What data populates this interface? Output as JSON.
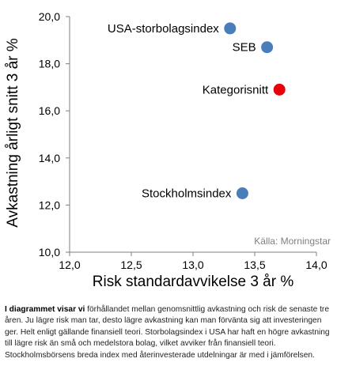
{
  "chart_data": {
    "type": "scatter",
    "title": "",
    "xlabel": "Risk standardavvikelse  3 år %",
    "ylabel": "Avkastning årligt snitt  3 år %",
    "xlim": [
      12.0,
      14.0
    ],
    "ylim": [
      10.0,
      20.0
    ],
    "x_ticks": [
      "12,0",
      "12,5",
      "13,0",
      "13,5",
      "14,0"
    ],
    "y_ticks": [
      "10,0",
      "12,0",
      "14,0",
      "16,0",
      "18,0",
      "20,0"
    ],
    "grid": false,
    "points": [
      {
        "label": "USA-storbolagsindex",
        "x": 13.3,
        "y": 19.5,
        "color": "#4a7ebb"
      },
      {
        "label": "SEB",
        "x": 13.6,
        "y": 18.7,
        "color": "#4a7ebb"
      },
      {
        "label": "Kategorisnitt",
        "x": 13.7,
        "y": 16.9,
        "color": "#e8000b"
      },
      {
        "label": "Stockholmsindex",
        "x": 13.4,
        "y": 12.5,
        "color": "#4a7ebb"
      }
    ],
    "source_note": "Källa: Morningstar"
  },
  "caption": {
    "lead": "I diagrammet visar vi",
    "body": " förhållandet mellan genomsnittlig avkastning och risk de senaste tre åren. Ju lägre risk man tar, desto lägre avkastning kan man förvänta sig att investeringen ger. Helt enligt gällande finansiell teori. Storbolagsindex i USA har haft en högre avkastning till lägre risk än små och medelstora bolag, vilket avviker från finansiell teori. Stockholmsbörsens breda index med återinvesterade utdelningar är med i jämförelsen."
  }
}
